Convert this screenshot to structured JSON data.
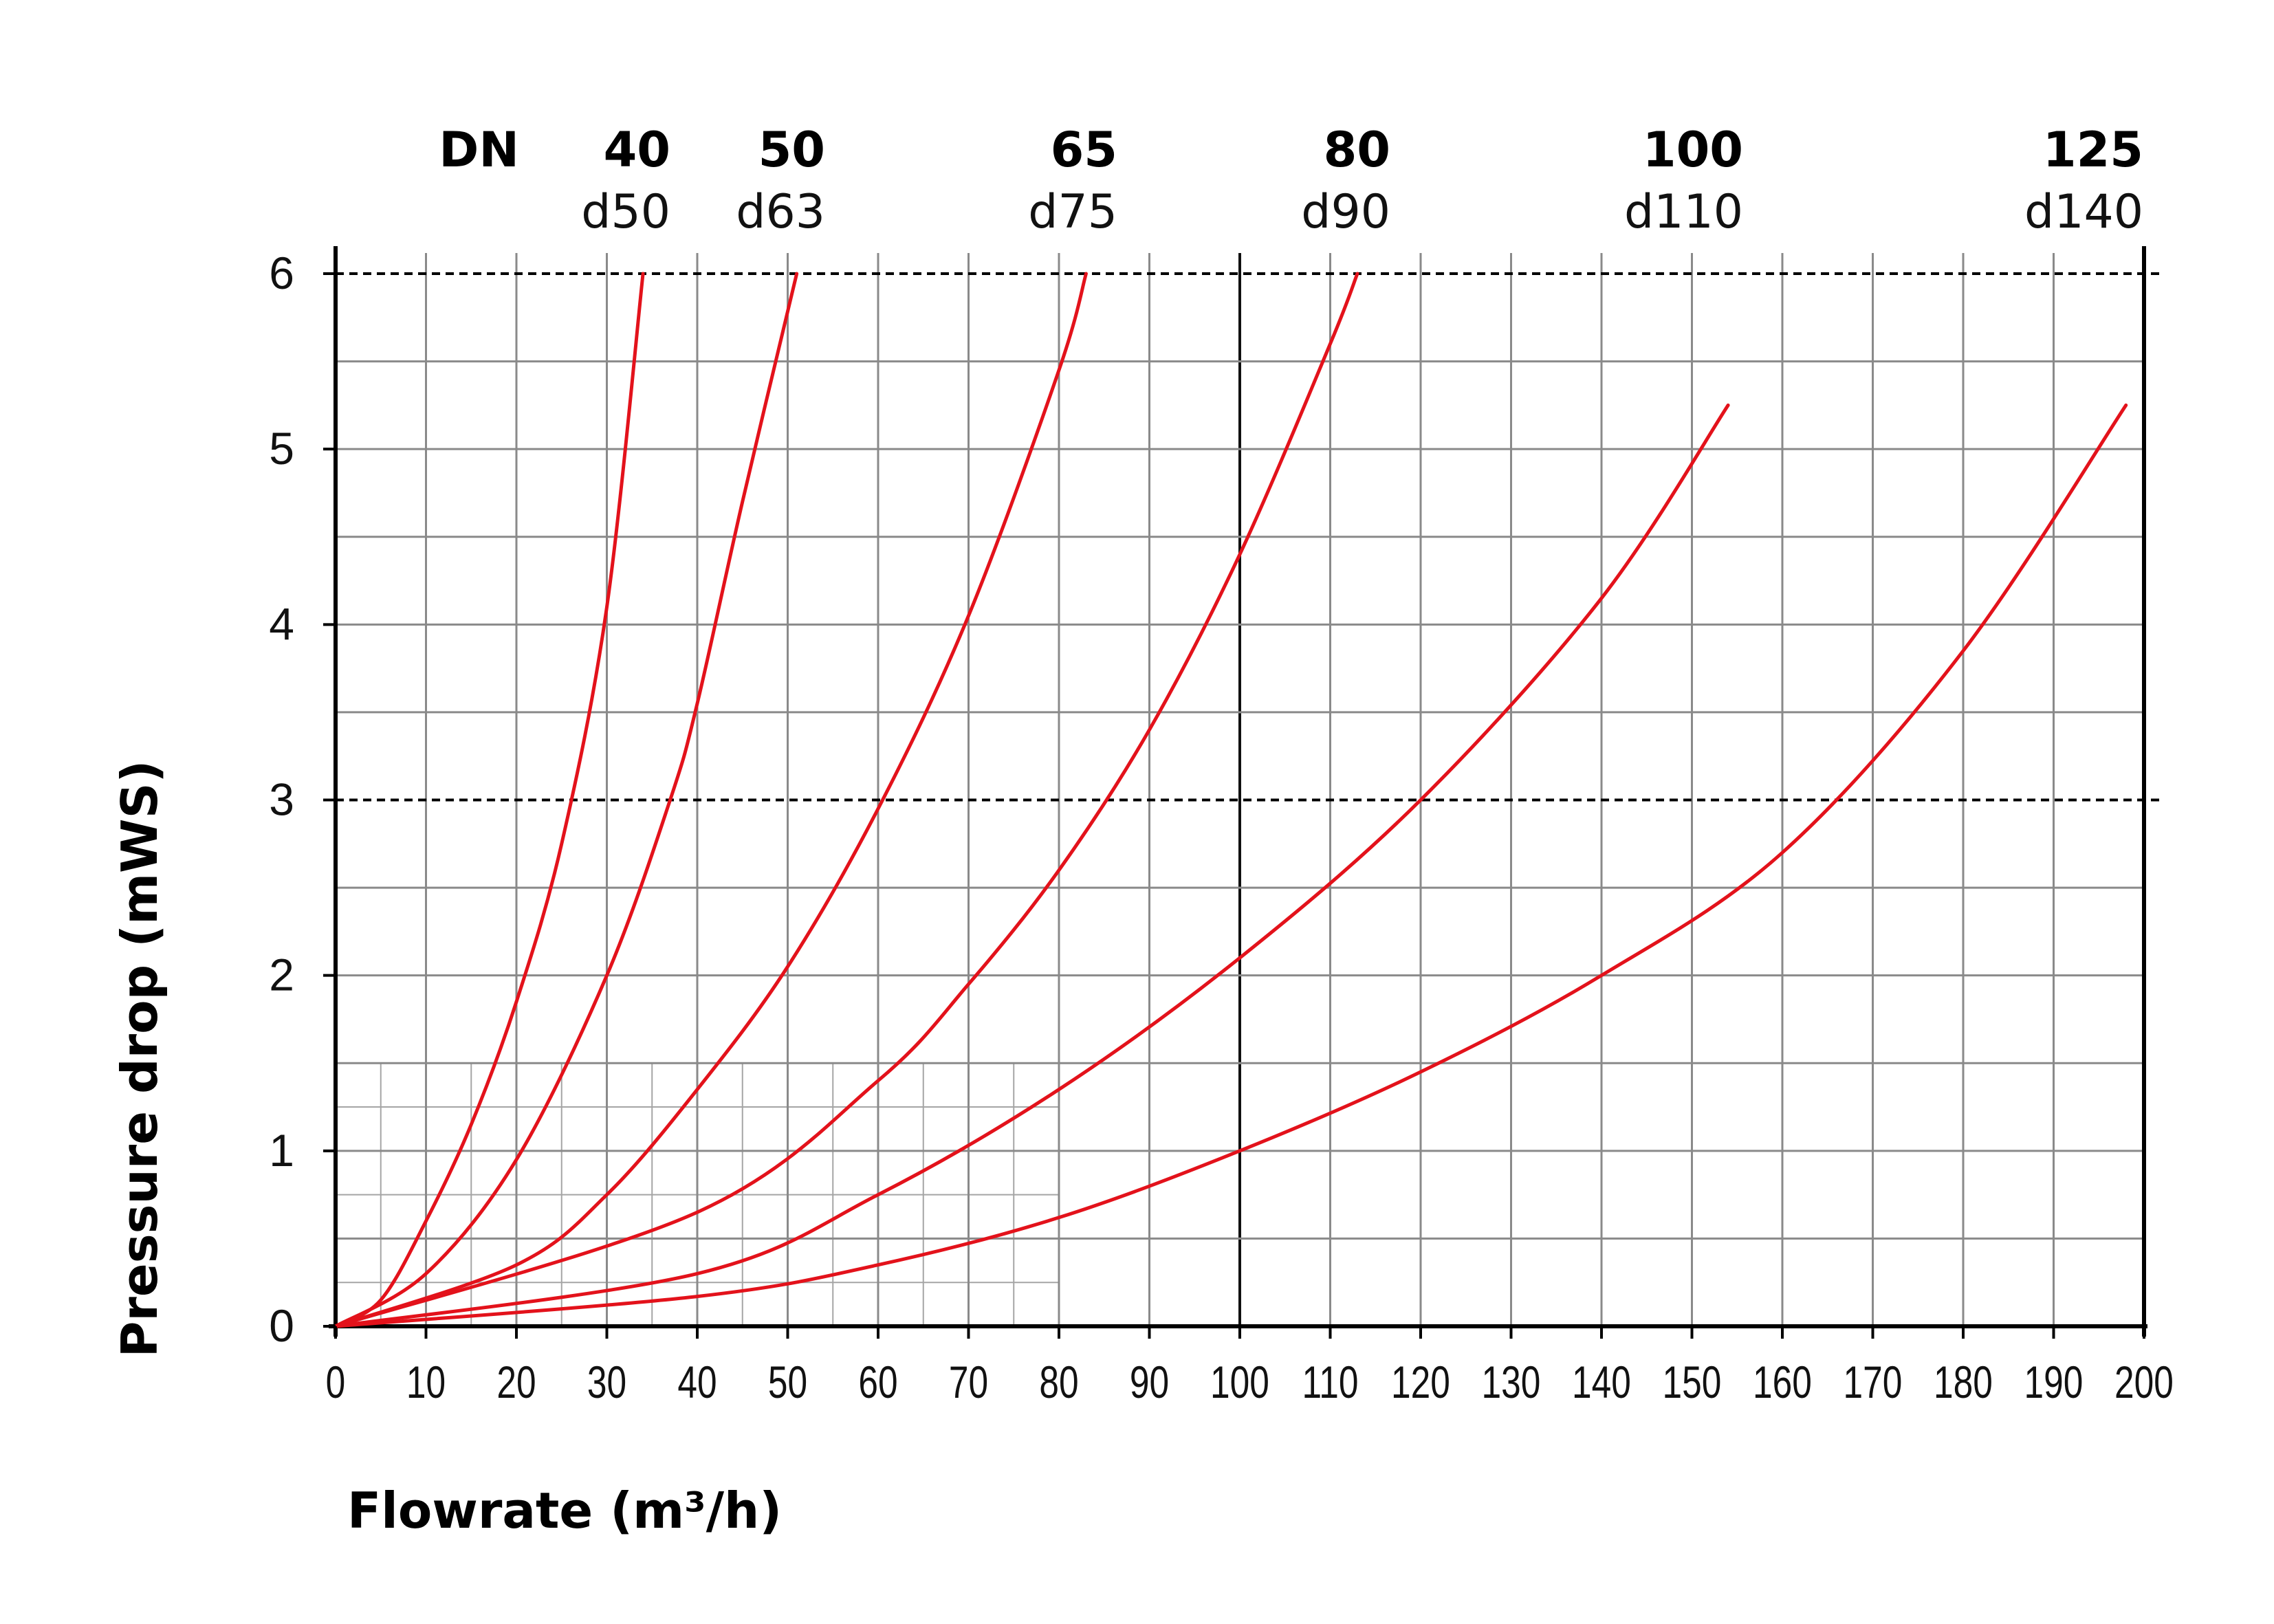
{
  "chart_data": {
    "type": "line",
    "title": "",
    "xlabel": "Flowrate (m³/h)",
    "ylabel": "Pressure drop (mWS)",
    "xlim": [
      0,
      200
    ],
    "ylim": [
      0,
      6
    ],
    "x_ticks": [
      "0",
      "10",
      "20",
      "30",
      "40",
      "50",
      "60",
      "70",
      "80",
      "90",
      "100",
      "110",
      "120",
      "130",
      "140",
      "150",
      "160",
      "170",
      "180",
      "190",
      "200"
    ],
    "y_ticks": [
      "0",
      "1",
      "2",
      "3",
      "4",
      "5",
      "6"
    ],
    "grid": true,
    "minor_grid_region": {
      "x": [
        0,
        80
      ],
      "y": [
        0,
        1.5
      ]
    },
    "reference_lines": [
      3,
      6
    ],
    "dn_header": "DN",
    "series_color": "#e3121b",
    "grid_color": "#8a8a8a",
    "series": [
      {
        "name": "40",
        "label_dn": "40",
        "label_d": "d50",
        "x": [
          0,
          5,
          10,
          15,
          20,
          25,
          30,
          34
        ],
        "y": [
          0,
          0.15,
          0.6,
          1.15,
          1.85,
          2.75,
          4.1,
          6.0
        ]
      },
      {
        "name": "50",
        "label_dn": "50",
        "label_d": "d63",
        "x": [
          0,
          10,
          20,
          30,
          37,
          40,
          45,
          51
        ],
        "y": [
          0,
          0.3,
          0.95,
          2.0,
          3.0,
          3.55,
          4.7,
          6.0
        ]
      },
      {
        "name": "65",
        "label_dn": "65",
        "label_d": "d75",
        "x": [
          0,
          20,
          30,
          40,
          50,
          60,
          70,
          80,
          83
        ],
        "y": [
          0,
          0.35,
          0.75,
          1.35,
          2.05,
          2.95,
          4.05,
          5.45,
          6.0
        ]
      },
      {
        "name": "80",
        "label_dn": "80",
        "label_d": "d90",
        "x": [
          0,
          40,
          60,
          70,
          80,
          90,
          100,
          110,
          113
        ],
        "y": [
          0,
          0.65,
          1.4,
          1.95,
          2.6,
          3.4,
          4.4,
          5.6,
          6.0
        ]
      },
      {
        "name": "100",
        "label_dn": "100",
        "label_d": "d110",
        "x": [
          0,
          40,
          60,
          80,
          100,
          120,
          140,
          154
        ],
        "y": [
          0,
          0.3,
          0.75,
          1.35,
          2.1,
          3.0,
          4.15,
          5.25
        ]
      },
      {
        "name": "125",
        "label_dn": "125",
        "label_d": "d140",
        "x": [
          0,
          40,
          60,
          80,
          100,
          120,
          140,
          160,
          180,
          198
        ],
        "y": [
          0,
          0.17,
          0.35,
          0.62,
          1.0,
          1.45,
          2.0,
          2.7,
          3.85,
          5.25
        ]
      }
    ]
  }
}
